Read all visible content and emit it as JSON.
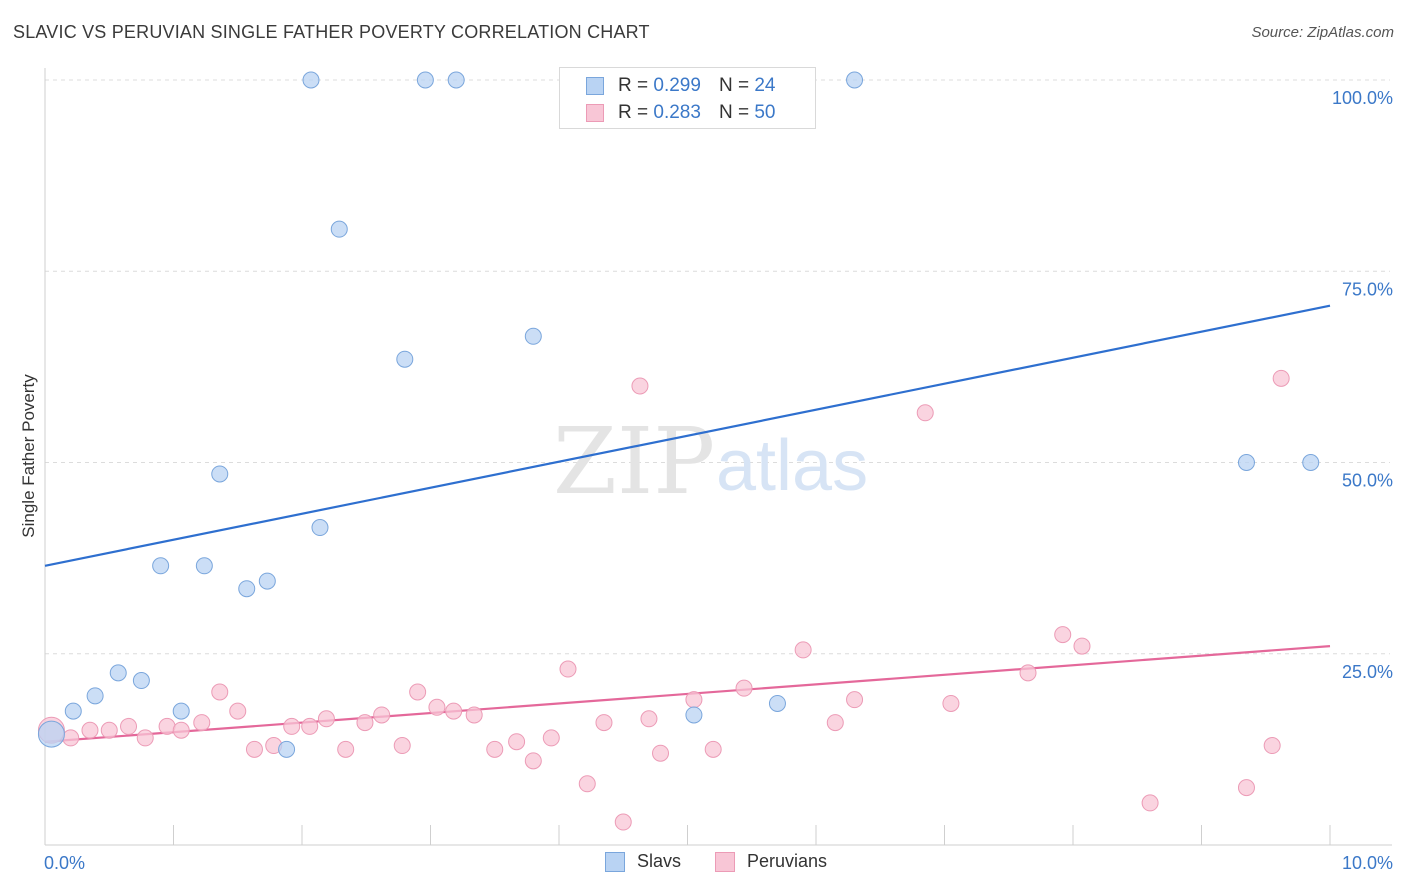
{
  "title": "SLAVIC VS PERUVIAN SINGLE FATHER POVERTY CORRELATION CHART",
  "source": "Source: ZipAtlas.com",
  "legend": {
    "rows": [
      {
        "r_label": "R = ",
        "r_value": "0.299",
        "n_label": "N = ",
        "n_value": "24"
      },
      {
        "r_label": "R = ",
        "r_value": "0.283",
        "n_label": "N = ",
        "n_value": "50"
      }
    ]
  },
  "bottom_legend": [
    "Slavs",
    "Peruvians"
  ],
  "colors": {
    "slavs_fill": "#b9d3f3",
    "slavs_stroke": "#7aa6dc",
    "slavs_line": "#2e6fcf",
    "peruvians_fill": "#f8c6d6",
    "peruvians_stroke": "#ec9bb6",
    "peruvians_line": "#e4689a",
    "axis_label": "#3b78c8"
  },
  "chart_data": {
    "type": "scatter",
    "title": "SLAVIC VS PERUVIAN SINGLE FATHER POVERTY CORRELATION CHART",
    "xlabel": "",
    "ylabel": "Single Father Poverty",
    "xlim": [
      0,
      10
    ],
    "ylim": [
      0,
      100
    ],
    "x_tick_labels": [
      "0.0%",
      "10.0%"
    ],
    "y_tick_labels": [
      "25.0%",
      "50.0%",
      "75.0%",
      "100.0%"
    ],
    "y_ticks": [
      25,
      50,
      75,
      100
    ],
    "watermark": "ZIPatlas",
    "series": [
      {
        "name": "Slavs",
        "R": 0.299,
        "N": 24,
        "trend": {
          "x": [
            0,
            10
          ],
          "y": [
            36.5,
            70.5
          ]
        },
        "points": [
          {
            "x": 0.05,
            "y": 14.5
          },
          {
            "x": 0.22,
            "y": 17.5
          },
          {
            "x": 0.39,
            "y": 19.5
          },
          {
            "x": 0.57,
            "y": 22.5
          },
          {
            "x": 0.75,
            "y": 21.5
          },
          {
            "x": 0.9,
            "y": 36.5
          },
          {
            "x": 1.06,
            "y": 17.5
          },
          {
            "x": 1.24,
            "y": 36.5
          },
          {
            "x": 1.36,
            "y": 48.5
          },
          {
            "x": 1.57,
            "y": 33.5
          },
          {
            "x": 1.73,
            "y": 34.5
          },
          {
            "x": 1.88,
            "y": 12.5
          },
          {
            "x": 2.07,
            "y": 100
          },
          {
            "x": 2.14,
            "y": 41.5
          },
          {
            "x": 2.29,
            "y": 80.5
          },
          {
            "x": 2.8,
            "y": 63.5
          },
          {
            "x": 2.96,
            "y": 100
          },
          {
            "x": 3.2,
            "y": 100
          },
          {
            "x": 3.8,
            "y": 66.5
          },
          {
            "x": 5.05,
            "y": 17.0
          },
          {
            "x": 5.7,
            "y": 18.5
          },
          {
            "x": 6.3,
            "y": 100
          },
          {
            "x": 9.35,
            "y": 50
          },
          {
            "x": 9.85,
            "y": 50
          }
        ]
      },
      {
        "name": "Peruvians",
        "R": 0.283,
        "N": 50,
        "trend": {
          "x": [
            0,
            10
          ],
          "y": [
            13.5,
            26.0
          ]
        },
        "points": [
          {
            "x": 0.05,
            "y": 15.0
          },
          {
            "x": 0.2,
            "y": 14.0
          },
          {
            "x": 0.35,
            "y": 15.0
          },
          {
            "x": 0.5,
            "y": 15.0
          },
          {
            "x": 0.65,
            "y": 15.5
          },
          {
            "x": 0.78,
            "y": 14.0
          },
          {
            "x": 0.95,
            "y": 15.5
          },
          {
            "x": 1.06,
            "y": 15.0
          },
          {
            "x": 1.22,
            "y": 16.0
          },
          {
            "x": 1.36,
            "y": 20.0
          },
          {
            "x": 1.5,
            "y": 17.5
          },
          {
            "x": 1.63,
            "y": 12.5
          },
          {
            "x": 1.78,
            "y": 13.0
          },
          {
            "x": 1.92,
            "y": 15.5
          },
          {
            "x": 2.06,
            "y": 15.5
          },
          {
            "x": 2.19,
            "y": 16.5
          },
          {
            "x": 2.34,
            "y": 12.5
          },
          {
            "x": 2.49,
            "y": 16.0
          },
          {
            "x": 2.62,
            "y": 17.0
          },
          {
            "x": 2.78,
            "y": 13.0
          },
          {
            "x": 2.9,
            "y": 20.0
          },
          {
            "x": 3.05,
            "y": 18.0
          },
          {
            "x": 3.18,
            "y": 17.5
          },
          {
            "x": 3.34,
            "y": 17.0
          },
          {
            "x": 3.5,
            "y": 12.5
          },
          {
            "x": 3.67,
            "y": 13.5
          },
          {
            "x": 3.8,
            "y": 11.0
          },
          {
            "x": 3.94,
            "y": 14.0
          },
          {
            "x": 4.07,
            "y": 23.0
          },
          {
            "x": 4.22,
            "y": 8.0
          },
          {
            "x": 4.35,
            "y": 16.0
          },
          {
            "x": 4.5,
            "y": 3.0
          },
          {
            "x": 4.63,
            "y": 60.0
          },
          {
            "x": 4.7,
            "y": 16.5
          },
          {
            "x": 4.79,
            "y": 12.0
          },
          {
            "x": 5.05,
            "y": 19.0
          },
          {
            "x": 5.2,
            "y": 12.5
          },
          {
            "x": 5.44,
            "y": 20.5
          },
          {
            "x": 5.9,
            "y": 25.5
          },
          {
            "x": 6.15,
            "y": 16.0
          },
          {
            "x": 6.3,
            "y": 19.0
          },
          {
            "x": 6.85,
            "y": 56.5
          },
          {
            "x": 7.05,
            "y": 18.5
          },
          {
            "x": 7.65,
            "y": 22.5
          },
          {
            "x": 7.92,
            "y": 27.5
          },
          {
            "x": 8.07,
            "y": 26.0
          },
          {
            "x": 8.6,
            "y": 5.5
          },
          {
            "x": 9.35,
            "y": 7.5
          },
          {
            "x": 9.55,
            "y": 13.0
          },
          {
            "x": 9.62,
            "y": 61.0
          }
        ]
      }
    ]
  }
}
